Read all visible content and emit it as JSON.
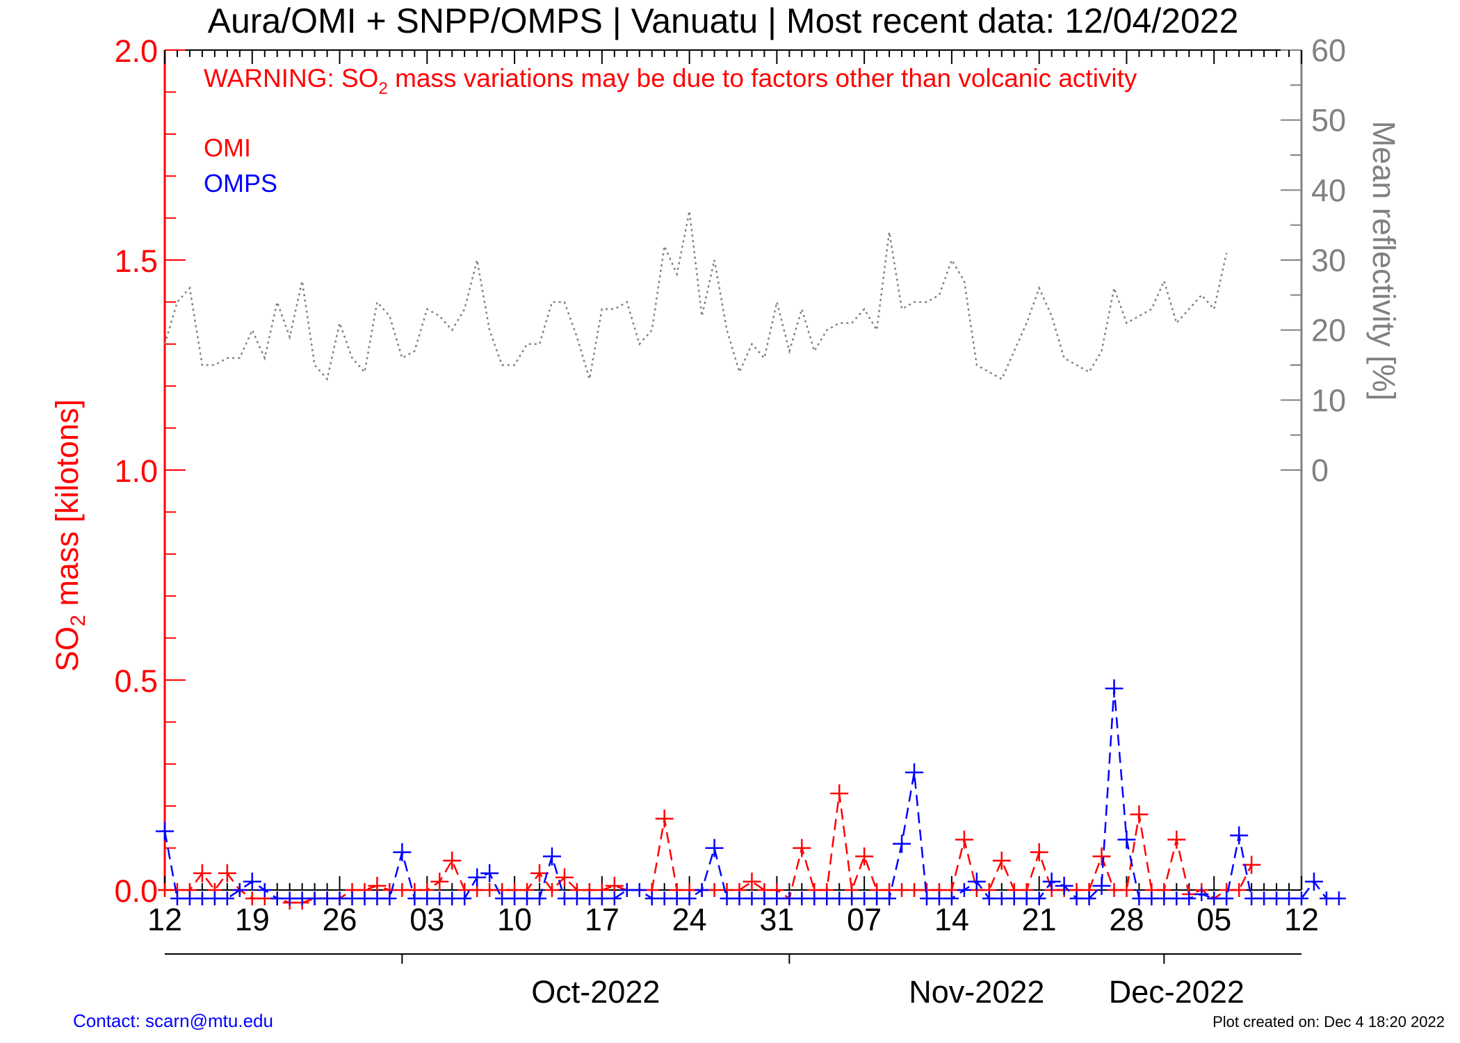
{
  "chart_data": {
    "type": "line",
    "title": "Aura/OMI + SNPP/OMPS | Vanuatu | Most recent data: 12/04/2022",
    "warning": {
      "prefix": "WARNING: SO",
      "subscript": "2",
      "suffix": " mass variations may be due to factors other than volcanic activity"
    },
    "ylabel_left": {
      "prefix": "SO",
      "subscript": "2",
      "suffix": " mass [kilotons]"
    },
    "ylabel_right": "Mean reflectivity [%]",
    "ylim_left": [
      0,
      2.0
    ],
    "ylim_right": [
      -60,
      60
    ],
    "left_tick_labels": [
      "0.0",
      "0.5",
      "1.0",
      "1.5",
      "2.0"
    ],
    "right_tick_labels": [
      "0",
      "10",
      "20",
      "30",
      "40",
      "50",
      "60"
    ],
    "x_day_labels": [
      "12",
      "19",
      "26",
      "03",
      "10",
      "17",
      "24",
      "31",
      "07",
      "14",
      "21",
      "28",
      "05",
      "12"
    ],
    "x_month_labels": [
      "Oct-2022",
      "Nov-2022",
      "Dec-2022"
    ],
    "x_range": [
      "2022-09-12",
      "2022-12-12"
    ],
    "legend": {
      "placement": "top-left",
      "entries": [
        "OMI",
        "OMPS"
      ]
    },
    "colors": {
      "omi": "#ff0000",
      "omps": "#0000ff",
      "reflectivity": "#808080",
      "axis_left": "#ff0000"
    },
    "start_date": "2022-09-12",
    "series": [
      {
        "name": "OMI",
        "style": "dashed-plus",
        "values": [
          0.0,
          0.0,
          0.0,
          0.04,
          0.0,
          0.04,
          0.0,
          -0.02,
          -0.02,
          -0.02,
          -0.03,
          -0.03,
          -0.02,
          -0.02,
          -0.02,
          0.0,
          0.0,
          0.01,
          0.0,
          0.0,
          0.0,
          0.0,
          0.02,
          0.07,
          0.0,
          0.0,
          0.0,
          0.0,
          0.0,
          0.0,
          0.04,
          0.0,
          0.03,
          0.0,
          0.0,
          0.0,
          0.01,
          0.0,
          0.0,
          0.0,
          0.17,
          0.0,
          0.0,
          0.0,
          0.0,
          0.0,
          0.0,
          0.02,
          0.0,
          0.0,
          -0.02,
          0.1,
          0.0,
          0.0,
          0.23,
          0.0,
          0.08,
          0.0,
          0.0,
          0.0,
          0.0,
          0.0,
          0.0,
          0.0,
          0.12,
          0.0,
          0.0,
          0.07,
          0.0,
          0.0,
          0.09,
          0.0,
          0.0,
          0.0,
          0.0,
          0.08,
          0.0,
          0.0,
          0.18,
          0.0,
          0.0,
          0.12,
          -0.01,
          0.0,
          -0.02,
          0.0,
          0.0,
          0.06
        ]
      },
      {
        "name": "OMPS",
        "style": "dashed-plus",
        "values": [
          0.14,
          -0.02,
          -0.02,
          -0.02,
          -0.02,
          -0.02,
          0.0,
          0.02,
          0.0,
          -0.02,
          -0.02,
          -0.02,
          -0.02,
          -0.02,
          -0.02,
          -0.02,
          -0.02,
          -0.02,
          -0.02,
          0.09,
          -0.02,
          -0.02,
          -0.02,
          -0.02,
          -0.02,
          0.03,
          0.04,
          -0.02,
          -0.02,
          -0.02,
          -0.02,
          0.08,
          -0.02,
          -0.02,
          -0.02,
          -0.02,
          -0.02,
          0.0,
          0.0,
          -0.02,
          -0.02,
          -0.02,
          -0.02,
          0.0,
          0.1,
          -0.02,
          -0.02,
          -0.02,
          -0.02,
          -0.02,
          -0.02,
          -0.02,
          -0.02,
          -0.02,
          -0.02,
          -0.02,
          -0.02,
          -0.02,
          -0.02,
          0.11,
          0.28,
          -0.02,
          -0.02,
          -0.02,
          0.0,
          0.02,
          -0.02,
          -0.02,
          -0.02,
          -0.02,
          -0.02,
          0.02,
          0.01,
          -0.02,
          -0.02,
          0.01,
          0.48,
          0.12,
          -0.02,
          -0.02,
          -0.02,
          -0.02,
          -0.02,
          -0.01,
          -0.02,
          -0.02,
          0.13,
          -0.02,
          -0.02,
          -0.02,
          -0.02,
          -0.02,
          0.02,
          -0.02,
          -0.02
        ]
      },
      {
        "name": "Mean reflectivity",
        "axis": "right",
        "style": "dotted",
        "values": [
          18,
          24,
          26,
          15,
          15,
          16,
          16,
          20,
          16,
          24,
          19,
          27,
          15,
          13,
          21,
          16,
          14,
          24,
          22,
          16,
          17,
          23,
          22,
          20,
          23,
          30,
          20,
          15,
          15,
          18,
          18,
          24,
          24,
          19,
          13,
          23,
          23,
          24,
          18,
          20,
          32,
          28,
          37,
          22,
          30,
          20,
          14,
          18,
          16,
          24,
          17,
          23,
          17,
          20,
          21,
          21,
          23,
          20,
          34,
          23,
          24,
          24,
          25,
          30,
          27,
          15,
          14,
          13,
          17,
          21,
          26,
          22,
          16,
          15,
          14,
          17,
          26,
          21,
          22,
          23,
          27,
          21,
          23,
          25,
          23,
          31
        ]
      }
    ],
    "omps_extra_points": [],
    "contact": "Contact: scarn@mtu.edu",
    "created": "Plot created on: Dec  4 18:20 2022"
  }
}
